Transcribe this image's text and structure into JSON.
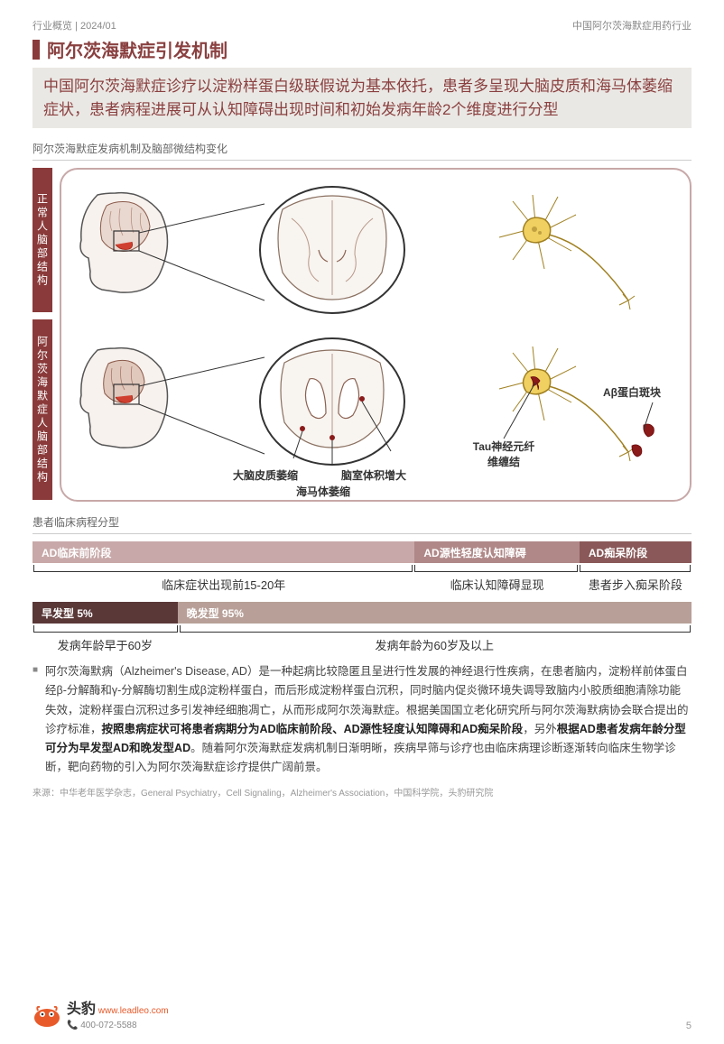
{
  "header": {
    "left": "行业概览 | 2024/01",
    "right": "中国阿尔茨海默症用药行业"
  },
  "title": "阿尔茨海默症引发机制",
  "subtitle": "中国阿尔茨海默症诊疗以淀粉样蛋白级联假说为基本依托，患者多呈现大脑皮质和海马体萎缩症状，患者病程进展可从认知障碍出现时间和初始发病年龄2个维度进行分型",
  "section1_label": "阿尔茨海默症发病机制及脑部微结构变化",
  "vlabel_top": "正常人脑部结构",
  "vlabel_bot": "阿尔茨海默症人脑部结构",
  "annotations": {
    "cortex": "大脑皮质萎缩",
    "ventricle": "脑室体积增大",
    "hippocampus": "海马体萎缩",
    "tau": "Tau神经元纤维缠结",
    "abeta": "Aβ蛋白斑块"
  },
  "section2_label": "患者临床病程分型",
  "stages1": {
    "segments": [
      {
        "label": "AD临床前阶段",
        "width_pct": 58,
        "color": "#c8a8a8"
      },
      {
        "label": "AD源性轻度认知障碍",
        "width_pct": 25,
        "color": "#b08888"
      },
      {
        "label": "AD痴呆阶段",
        "width_pct": 17,
        "color": "#8a5858"
      }
    ],
    "descs": [
      {
        "text": "临床症状出现前15-20年",
        "width_pct": 58
      },
      {
        "text": "临床认知障碍显现",
        "width_pct": 25
      },
      {
        "text": "患者步入痴呆阶段",
        "width_pct": 17
      }
    ]
  },
  "stages2": {
    "segments": [
      {
        "label": "早发型  5%",
        "width_pct": 22,
        "color": "#5a3838"
      },
      {
        "label": "晚发型  95%",
        "width_pct": 78,
        "color": "#b8a098"
      }
    ],
    "descs": [
      {
        "text": "发病年龄早于60岁",
        "width_pct": 22
      },
      {
        "text": "发病年龄为60岁及以上",
        "width_pct": 78
      }
    ]
  },
  "body_parts": [
    {
      "bold": false,
      "text": "阿尔茨海默病（Alzheimer's Disease, AD）是一种起病比较隐匿且呈进行性发展的神经退行性疾病，在患者脑内，淀粉样前体蛋白经β-分解酶和γ-分解酶切割生成β淀粉样蛋白，而后形成淀粉样蛋白沉积，同时脑内促炎微环境失调导致脑内小胶质细胞清除功能失效，淀粉样蛋白沉积过多引发神经细胞凋亡，从而形成阿尔茨海默症。根据美国国立老化研究所与阿尔茨海默病协会联合提出的诊疗标准，"
    },
    {
      "bold": true,
      "text": "按照患病症状可将患者病期分为AD临床前阶段、AD源性轻度认知障碍和AD痴呆阶段"
    },
    {
      "bold": false,
      "text": "，另外"
    },
    {
      "bold": true,
      "text": "根据AD患者发病年龄分型可分为早发型AD和晚发型AD"
    },
    {
      "bold": false,
      "text": "。随着阿尔茨海默症发病机制日渐明晰，疾病早筛与诊疗也由临床病理诊断逐渐转向临床生物学诊断，靶向药物的引入为阿尔茨海默症诊疗提供广阔前景。"
    }
  ],
  "source": "来源：中华老年医学杂志，General Psychiatry，Cell Signaling，Alzheimer's Association，中国科学院，头豹研究院",
  "footer": {
    "brand": "头豹",
    "url": "www.leadleo.com",
    "phone": "400-072-5588",
    "page": "5"
  },
  "colors": {
    "accent": "#8a3a3a",
    "accent_light": "#c8a8a8",
    "neuron_body": "#f0d060",
    "neuron_outline": "#a08020",
    "plaque": "#8b1a1a",
    "brain_outline": "#555555",
    "brain_fill": "#e8d8d0"
  }
}
